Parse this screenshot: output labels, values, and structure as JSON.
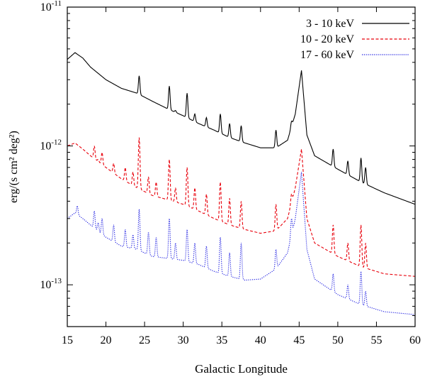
{
  "chart_data": {
    "type": "line",
    "xlabel": "Galactic Longitude",
    "ylabel": "erg/(s cm² deg²)",
    "xlim": [
      15,
      60
    ],
    "ylim": [
      5e-14,
      1e-11
    ],
    "yscale": "log",
    "x_ticks": [
      15,
      20,
      25,
      30,
      35,
      40,
      45,
      50,
      55,
      60
    ],
    "y_ticks": [
      {
        "value": 1e-11,
        "mantissa": "10",
        "exp": "-11"
      },
      {
        "value": 1e-12,
        "mantissa": "10",
        "exp": "-12"
      },
      {
        "value": 1e-13,
        "mantissa": "10",
        "exp": "-13"
      }
    ],
    "legend_position": "top-right",
    "series": [
      {
        "name": "3 - 10 keV",
        "color": "#000000",
        "dash": "solid",
        "baseline": [
          [
            15,
            4.2e-12
          ],
          [
            16,
            4.7e-12
          ],
          [
            17,
            4.3e-12
          ],
          [
            18,
            3.7e-12
          ],
          [
            20,
            3e-12
          ],
          [
            22,
            2.6e-12
          ],
          [
            24,
            2.4e-12
          ],
          [
            26,
            2.1e-12
          ],
          [
            28,
            1.85e-12
          ],
          [
            30,
            1.65e-12
          ],
          [
            32,
            1.45e-12
          ],
          [
            34,
            1.3e-12
          ],
          [
            36,
            1.15e-12
          ],
          [
            38,
            1.05e-12
          ],
          [
            40,
            9.7e-13
          ],
          [
            42,
            9.7e-13
          ],
          [
            43.5,
            1.1e-12
          ],
          [
            44.5,
            1.7e-12
          ],
          [
            45.3,
            3.5e-12
          ],
          [
            46,
            1.2e-12
          ],
          [
            47,
            8.5e-13
          ],
          [
            50,
            6.8e-13
          ],
          [
            53,
            5.5e-13
          ],
          [
            56,
            4.6e-13
          ],
          [
            60,
            3.8e-13
          ]
        ],
        "peaks": [
          [
            18.5,
            3.2e-12
          ],
          [
            19,
            2.6e-12
          ],
          [
            19.5,
            2.9e-12
          ],
          [
            21,
            2.5e-12
          ],
          [
            22.5,
            2.2e-12
          ],
          [
            23.5,
            2e-12
          ],
          [
            24.3,
            3.2e-12
          ],
          [
            25.5,
            2.1e-12
          ],
          [
            26.5,
            1.9e-12
          ],
          [
            28.2,
            2.7e-12
          ],
          [
            29,
            1.8e-12
          ],
          [
            30.5,
            2.4e-12
          ],
          [
            31.5,
            1.7e-12
          ],
          [
            33,
            1.6e-12
          ],
          [
            34.8,
            1.7e-12
          ],
          [
            36,
            1.45e-12
          ],
          [
            37.5,
            1.4e-12
          ],
          [
            42,
            1.3e-12
          ],
          [
            44,
            1.5e-12
          ],
          [
            49.4,
            9.5e-13
          ],
          [
            51.3,
            7.8e-13
          ],
          [
            53,
            8.2e-13
          ],
          [
            53.6,
            7e-13
          ]
        ]
      },
      {
        "name": "10 - 20 keV",
        "color": "#e8000b",
        "dash": "dashed",
        "baseline": [
          [
            15,
            1e-12
          ],
          [
            16,
            1.05e-12
          ],
          [
            17,
            9.5e-13
          ],
          [
            18,
            8.5e-13
          ],
          [
            20,
            7e-13
          ],
          [
            22,
            5.8e-13
          ],
          [
            24,
            5e-13
          ],
          [
            26,
            4.4e-13
          ],
          [
            28,
            4.1e-13
          ],
          [
            30,
            3.8e-13
          ],
          [
            32,
            3.4e-13
          ],
          [
            34,
            3e-13
          ],
          [
            36,
            2.7e-13
          ],
          [
            38,
            2.5e-13
          ],
          [
            40,
            2.35e-13
          ],
          [
            42,
            2.45e-13
          ],
          [
            43.5,
            3e-13
          ],
          [
            44.5,
            5e-13
          ],
          [
            45.3,
            9.5e-13
          ],
          [
            46,
            3e-13
          ],
          [
            47,
            2e-13
          ],
          [
            50,
            1.6e-13
          ],
          [
            53,
            1.35e-13
          ],
          [
            56,
            1.2e-13
          ],
          [
            60,
            1.15e-13
          ]
        ],
        "peaks": [
          [
            18.5,
            1e-12
          ],
          [
            19,
            8e-13
          ],
          [
            19.5,
            9e-13
          ],
          [
            21,
            7.5e-13
          ],
          [
            22.5,
            7e-13
          ],
          [
            23.5,
            6.5e-13
          ],
          [
            24.3,
            1.15e-12
          ],
          [
            25.5,
            6e-13
          ],
          [
            26.5,
            5.5e-13
          ],
          [
            28.2,
            8e-13
          ],
          [
            29,
            5e-13
          ],
          [
            30.5,
            7e-13
          ],
          [
            31.5,
            5e-13
          ],
          [
            33,
            4.5e-13
          ],
          [
            34.8,
            5.5e-13
          ],
          [
            36,
            4.2e-13
          ],
          [
            37.5,
            4e-13
          ],
          [
            42,
            3.8e-13
          ],
          [
            44,
            4.5e-13
          ],
          [
            49.4,
            2.7e-13
          ],
          [
            51.3,
            2e-13
          ],
          [
            53,
            2.7e-13
          ],
          [
            53.6,
            2e-13
          ]
        ]
      },
      {
        "name": "17 - 60 keV",
        "color": "#1818e0",
        "dash": "dotted",
        "baseline": [
          [
            15,
            3e-13
          ],
          [
            16,
            3.3e-13
          ],
          [
            17,
            3e-13
          ],
          [
            18,
            2.7e-13
          ],
          [
            20,
            2.2e-13
          ],
          [
            22,
            1.9e-13
          ],
          [
            24,
            1.8e-13
          ],
          [
            26,
            1.6e-13
          ],
          [
            28,
            1.55e-13
          ],
          [
            30,
            1.5e-13
          ],
          [
            32,
            1.4e-13
          ],
          [
            34,
            1.25e-13
          ],
          [
            36,
            1.15e-13
          ],
          [
            38,
            1.08e-13
          ],
          [
            40,
            1.1e-13
          ],
          [
            42,
            1.3e-13
          ],
          [
            43.5,
            1.7e-13
          ],
          [
            44.5,
            3e-13
          ],
          [
            45.3,
            6.5e-13
          ],
          [
            46,
            1.8e-13
          ],
          [
            47,
            1.1e-13
          ],
          [
            50,
            8.5e-14
          ],
          [
            53,
            7.2e-14
          ],
          [
            56,
            6.4e-14
          ],
          [
            60,
            6.1e-14
          ]
        ],
        "peaks": [
          [
            16.3,
            3.7e-13
          ],
          [
            18.5,
            3.4e-13
          ],
          [
            19,
            2.8e-13
          ],
          [
            19.5,
            3e-13
          ],
          [
            21,
            2.7e-13
          ],
          [
            22.5,
            2.5e-13
          ],
          [
            23.5,
            2.3e-13
          ],
          [
            24.3,
            3.5e-13
          ],
          [
            25.5,
            2.4e-13
          ],
          [
            26.5,
            2.2e-13
          ],
          [
            28.2,
            3e-13
          ],
          [
            29,
            2e-13
          ],
          [
            30.5,
            2.5e-13
          ],
          [
            31.5,
            2e-13
          ],
          [
            33,
            1.9e-13
          ],
          [
            34.8,
            2.2e-13
          ],
          [
            36,
            1.7e-13
          ],
          [
            37.5,
            2e-13
          ],
          [
            42,
            1.8e-13
          ],
          [
            44,
            3e-13
          ],
          [
            49.4,
            1.2e-13
          ],
          [
            51.3,
            1e-13
          ],
          [
            53,
            1.25e-13
          ],
          [
            53.6,
            9e-14
          ]
        ]
      }
    ]
  }
}
